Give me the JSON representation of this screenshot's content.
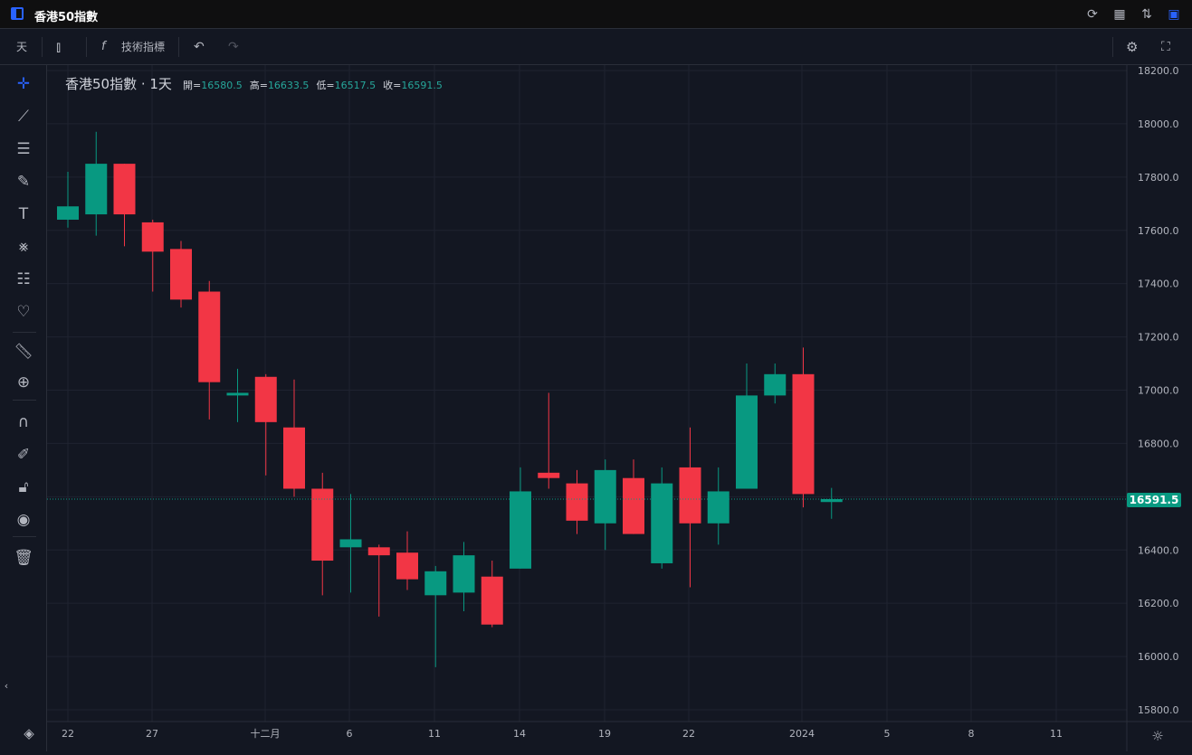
{
  "window": {
    "title": "香港50指數"
  },
  "toolbar": {
    "interval": "天",
    "indicators_label": "技術指標"
  },
  "legend": {
    "symbol": "香港50指數 · 1天",
    "open_label": "開=",
    "open": "16580.5",
    "high_label": "高=",
    "high": "16633.5",
    "low_label": "低=",
    "low": "16517.5",
    "close_label": "收=",
    "close": "16591.5"
  },
  "price_tag": "16591.5",
  "colors": {
    "up": "#089981",
    "down": "#f23645",
    "bg": "#131722",
    "grid": "#1f2330"
  },
  "chart_data": {
    "type": "candlestick",
    "x_labels": [
      "22",
      "27",
      "十二月",
      "6",
      "11",
      "14",
      "19",
      "22",
      "2024",
      "5",
      "8",
      "11"
    ],
    "y_ticks": [
      "18200.0",
      "18000.0",
      "17800.0",
      "17600.0",
      "17400.0",
      "17200.0",
      "17000.0",
      "16800.0",
      "16600.0",
      "16400.0",
      "16200.0",
      "16000.0",
      "15800.0"
    ],
    "ylim": [
      15800,
      18200
    ],
    "candles": [
      {
        "o": 17640,
        "h": 17820,
        "l": 17610,
        "c": 17690
      },
      {
        "o": 17660,
        "h": 17970,
        "l": 17580,
        "c": 17850
      },
      {
        "o": 17850,
        "h": 17850,
        "l": 17540,
        "c": 17660
      },
      {
        "o": 17630,
        "h": 17640,
        "l": 17370,
        "c": 17520
      },
      {
        "o": 17530,
        "h": 17560,
        "l": 17310,
        "c": 17340
      },
      {
        "o": 17370,
        "h": 17410,
        "l": 16890,
        "c": 17030
      },
      {
        "o": 16980,
        "h": 17080,
        "l": 16880,
        "c": 16990
      },
      {
        "o": 17050,
        "h": 17060,
        "l": 16680,
        "c": 16880
      },
      {
        "o": 16860,
        "h": 17040,
        "l": 16600,
        "c": 16630
      },
      {
        "o": 16630,
        "h": 16690,
        "l": 16230,
        "c": 16360
      },
      {
        "o": 16410,
        "h": 16610,
        "l": 16240,
        "c": 16440
      },
      {
        "o": 16410,
        "h": 16420,
        "l": 16150,
        "c": 16380
      },
      {
        "o": 16390,
        "h": 16470,
        "l": 16250,
        "c": 16290
      },
      {
        "o": 16230,
        "h": 16340,
        "l": 15960,
        "c": 16320
      },
      {
        "o": 16240,
        "h": 16430,
        "l": 16170,
        "c": 16380
      },
      {
        "o": 16300,
        "h": 16360,
        "l": 16110,
        "c": 16120
      },
      {
        "o": 16330,
        "h": 16710,
        "l": 16330,
        "c": 16620
      },
      {
        "o": 16690,
        "h": 16990,
        "l": 16630,
        "c": 16670
      },
      {
        "o": 16650,
        "h": 16700,
        "l": 16460,
        "c": 16510
      },
      {
        "o": 16500,
        "h": 16740,
        "l": 16400,
        "c": 16700
      },
      {
        "o": 16670,
        "h": 16740,
        "l": 16460,
        "c": 16460
      },
      {
        "o": 16350,
        "h": 16710,
        "l": 16330,
        "c": 16650
      },
      {
        "o": 16710,
        "h": 16860,
        "l": 16260,
        "c": 16500
      },
      {
        "o": 16500,
        "h": 16710,
        "l": 16420,
        "c": 16620
      },
      {
        "o": 16630,
        "h": 17100,
        "l": 16630,
        "c": 16980
      },
      {
        "o": 16980,
        "h": 17100,
        "l": 16950,
        "c": 17060
      },
      {
        "o": 17060,
        "h": 17160,
        "l": 16560,
        "c": 16610
      },
      {
        "o": 16580,
        "h": 16633,
        "l": 16517,
        "c": 16591
      }
    ]
  }
}
